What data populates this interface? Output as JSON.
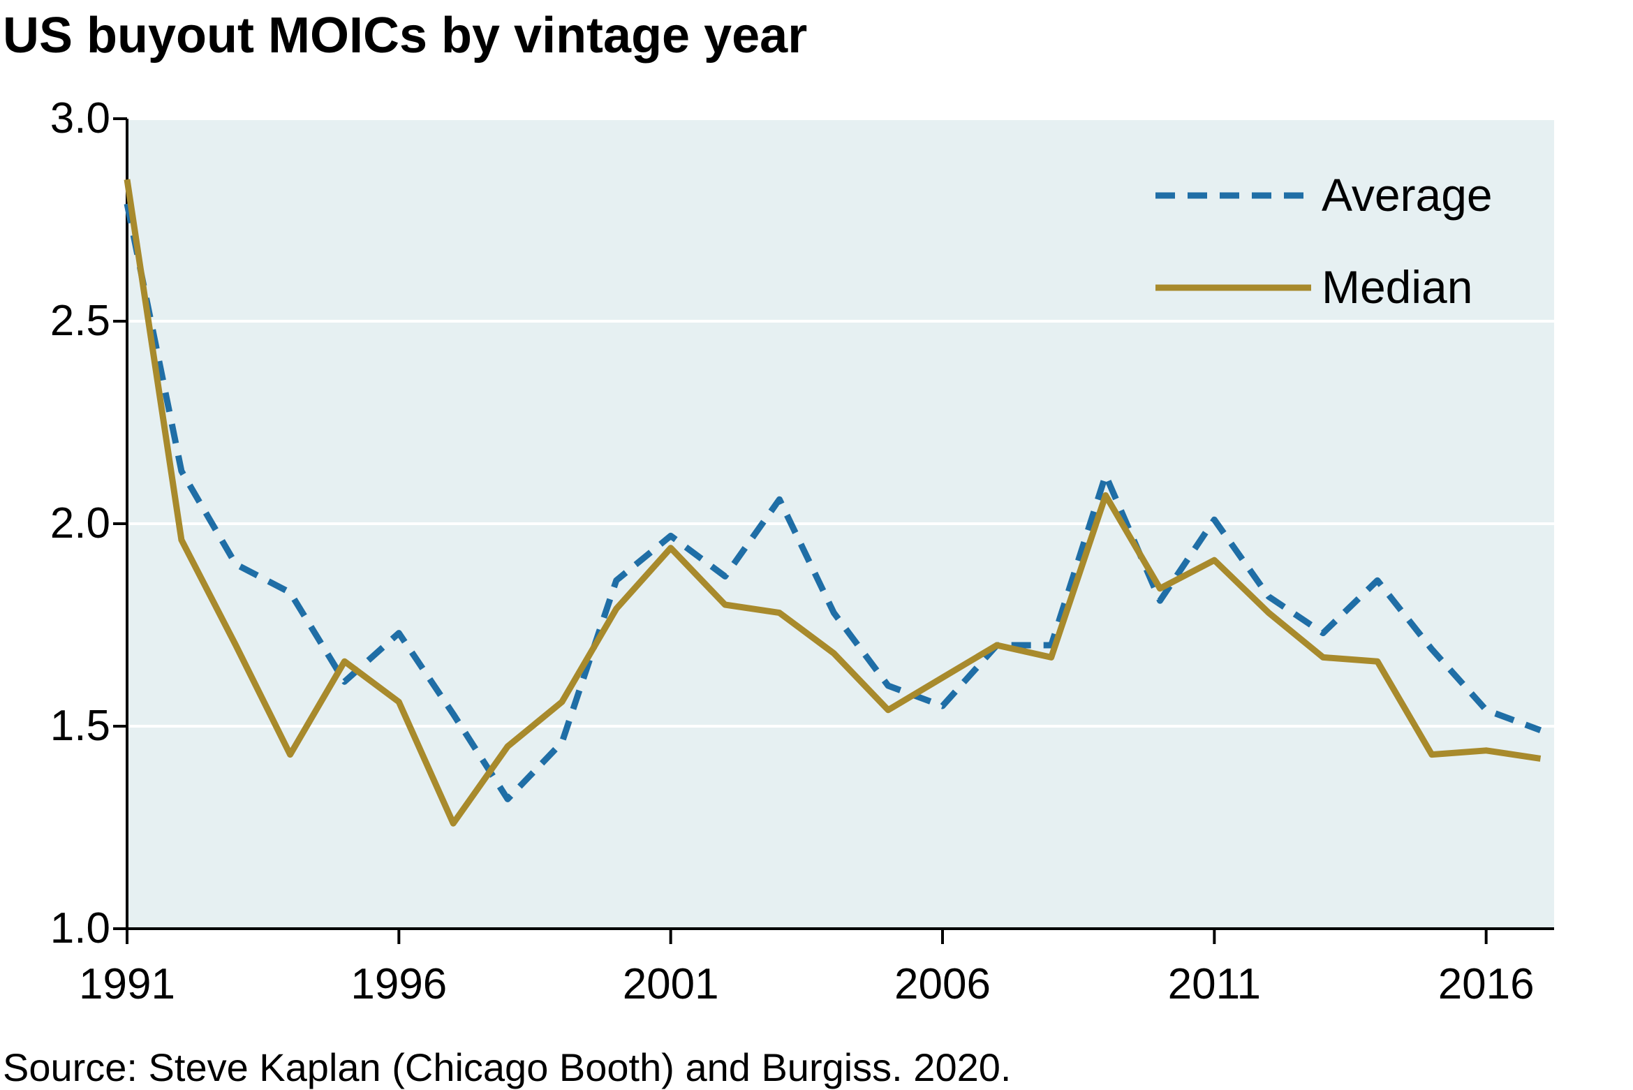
{
  "chart_data": {
    "type": "line",
    "title": "US buyout MOICs by vintage year",
    "xlabel": "",
    "ylabel": "",
    "x": [
      1991,
      1992,
      1993,
      1994,
      1995,
      1996,
      1997,
      1998,
      1999,
      2000,
      2001,
      2002,
      2003,
      2004,
      2005,
      2006,
      2007,
      2008,
      2009,
      2010,
      2011,
      2012,
      2013,
      2014,
      2015,
      2016,
      2017
    ],
    "xlim": [
      1991,
      2017.25
    ],
    "ylim": [
      1.0,
      3.0
    ],
    "x_ticks": [
      "1991",
      "1996",
      "2001",
      "2006",
      "2011",
      "2016"
    ],
    "y_ticks": [
      "1.0",
      "1.5",
      "2.0",
      "2.5",
      "3.0"
    ],
    "series": [
      {
        "name": "Average",
        "style": "dashed",
        "color": "#1F6EA6",
        "values": [
          2.79,
          2.13,
          1.9,
          1.83,
          1.61,
          1.73,
          1.53,
          1.32,
          1.46,
          1.86,
          1.97,
          1.87,
          2.06,
          1.78,
          1.6,
          1.55,
          1.7,
          1.7,
          2.12,
          1.81,
          2.01,
          1.82,
          1.73,
          1.86,
          1.69,
          1.54,
          1.49
        ]
      },
      {
        "name": "Median",
        "style": "solid",
        "color": "#A88A2C",
        "values": [
          2.85,
          1.96,
          1.7,
          1.43,
          1.66,
          1.56,
          1.26,
          1.45,
          1.56,
          1.79,
          1.94,
          1.8,
          1.78,
          1.68,
          1.54,
          1.62,
          1.7,
          1.67,
          2.07,
          1.84,
          1.91,
          1.78,
          1.67,
          1.66,
          1.43,
          1.44,
          1.42
        ]
      }
    ],
    "legend_position": "top-right",
    "grid": "horizontal",
    "plot_background": "#E6F0F2",
    "grid_color": "#FFFFFF",
    "source": "Source: Steve Kaplan (Chicago Booth) and Burgiss. 2020."
  }
}
